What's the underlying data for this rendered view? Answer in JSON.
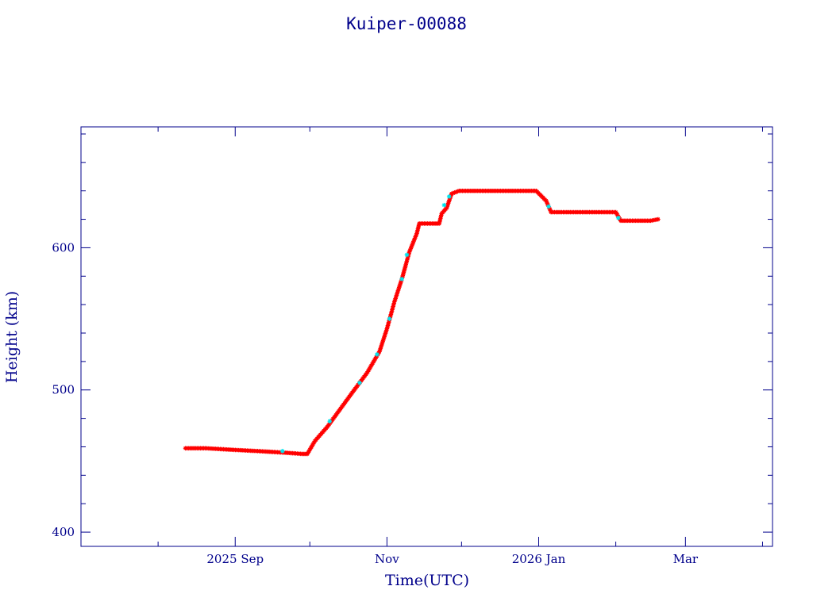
{
  "chart_data": {
    "type": "scatter",
    "title": "Kuiper-00088",
    "xlabel": "Time(UTC)",
    "ylabel": "Height (km)",
    "x_unit": "date",
    "xlim": [
      "2025-07-01",
      "2026-04-05"
    ],
    "ylim": [
      390,
      685
    ],
    "x_ticks": [
      {
        "date": "2025-09-01",
        "label": "2025 Sep"
      },
      {
        "date": "2025-11-01",
        "label": "Nov"
      },
      {
        "date": "2026-01-01",
        "label": "2026 Jan"
      },
      {
        "date": "2026-03-01",
        "label": "Mar"
      }
    ],
    "x_minor_ticks": [
      "2025-08-01",
      "2025-10-01",
      "2025-12-01",
      "2026-02-01",
      "2026-04-01"
    ],
    "y_ticks": [
      400,
      500,
      600
    ],
    "y_minor_step": 20,
    "grid": false,
    "colors": {
      "axes": "#00008b",
      "points_primary": "#ff0000",
      "points_secondary": "#00e5ee"
    },
    "series": [
      {
        "color": "#ff0000",
        "marker": "star",
        "points": [
          [
            "2025-08-12",
            459
          ],
          [
            "2025-08-20",
            459
          ],
          [
            "2025-08-30",
            458
          ],
          [
            "2025-09-10",
            457
          ],
          [
            "2025-09-20",
            456
          ],
          [
            "2025-09-28",
            455
          ],
          [
            "2025-09-30",
            455
          ],
          [
            "2025-10-03",
            464
          ],
          [
            "2025-10-08",
            474
          ],
          [
            "2025-10-13",
            486
          ],
          [
            "2025-10-18",
            498
          ],
          [
            "2025-10-24",
            512
          ],
          [
            "2025-10-29",
            527
          ],
          [
            "2025-11-01",
            543
          ],
          [
            "2025-11-04",
            562
          ],
          [
            "2025-11-07",
            578
          ],
          [
            "2025-11-10",
            597
          ],
          [
            "2025-11-13",
            610
          ],
          [
            "2025-11-14",
            617
          ],
          [
            "2025-11-18",
            617
          ],
          [
            "2025-11-22",
            617
          ],
          [
            "2025-11-23",
            624
          ],
          [
            "2025-11-25",
            628
          ],
          [
            "2025-11-27",
            638
          ],
          [
            "2025-11-30",
            640
          ],
          [
            "2025-12-08",
            640
          ],
          [
            "2025-12-16",
            640
          ],
          [
            "2025-12-24",
            640
          ],
          [
            "2025-12-28",
            640
          ],
          [
            "2025-12-31",
            640
          ],
          [
            "2026-01-04",
            633
          ],
          [
            "2026-01-06",
            625
          ],
          [
            "2026-01-13",
            625
          ],
          [
            "2026-01-20",
            625
          ],
          [
            "2026-01-27",
            625
          ],
          [
            "2026-02-01",
            625
          ],
          [
            "2026-02-03",
            619
          ],
          [
            "2026-02-09",
            619
          ],
          [
            "2026-02-15",
            619
          ],
          [
            "2026-02-18",
            620
          ]
        ]
      },
      {
        "color": "#00e5ee",
        "marker": "star",
        "points": [
          [
            "2025-09-20",
            457
          ],
          [
            "2025-10-09",
            478
          ],
          [
            "2025-10-21",
            505
          ],
          [
            "2025-10-28",
            525
          ],
          [
            "2025-11-02",
            550
          ],
          [
            "2025-11-07",
            578
          ],
          [
            "2025-11-09",
            595
          ],
          [
            "2025-11-24",
            630
          ],
          [
            "2025-11-26",
            636
          ],
          [
            "2026-01-05",
            629
          ],
          [
            "2026-02-02",
            621
          ]
        ]
      }
    ]
  }
}
